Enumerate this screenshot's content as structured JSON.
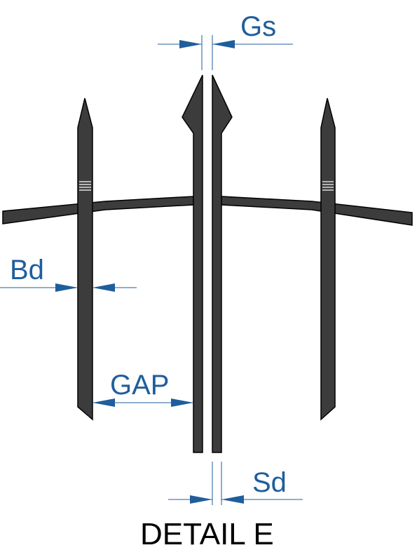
{
  "labels": {
    "gs": "Gs",
    "bd": "Bd",
    "gap": "GAP",
    "sd": "Sd",
    "title": "DETAIL E"
  },
  "colors": {
    "bar_fill": "#3c3c3c",
    "bar_stroke": "#000000",
    "dimension": "#1f5e9c",
    "title": "#000000",
    "background": "#ffffff"
  }
}
